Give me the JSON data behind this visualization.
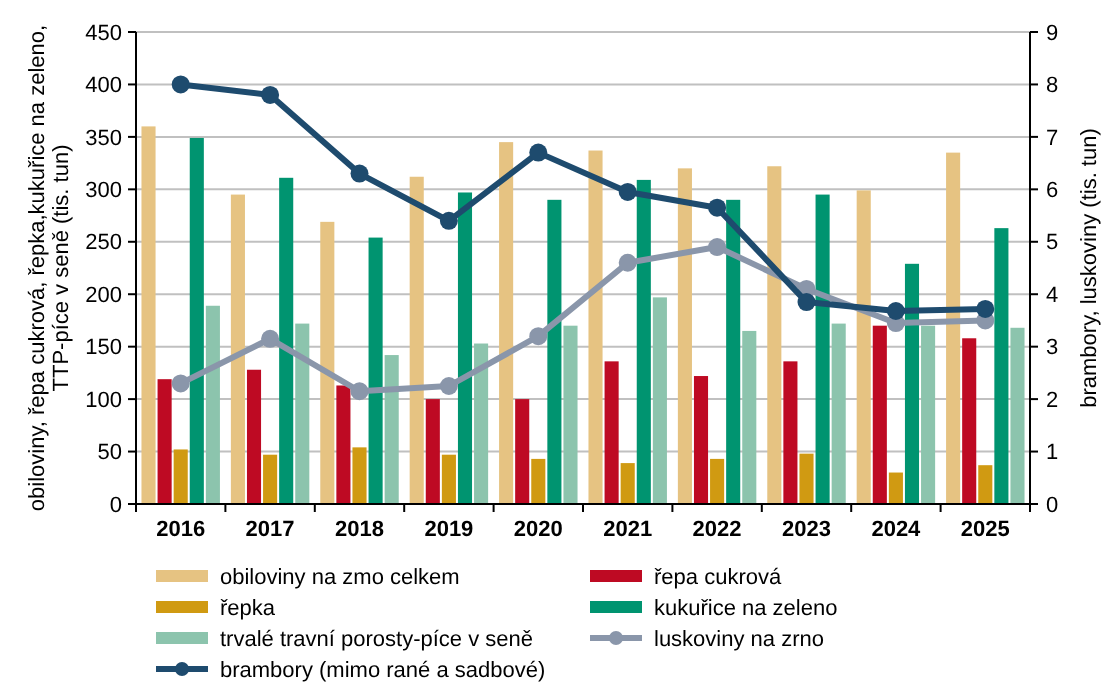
{
  "chart_data": {
    "type": "bar",
    "categories": [
      "2016",
      "2017",
      "2018",
      "2019",
      "2020",
      "2021",
      "2022",
      "2023",
      "2024",
      "2025"
    ],
    "ylabel": "obiloviny, řepa cukrová, řepka,kukuřice na zeleno,\nTTP-píce  v  seně  (tis. tun)",
    "y2label": "brambory, luskoviny (tis. tun)",
    "ylim": [
      0,
      450
    ],
    "yticks": [
      0,
      50,
      100,
      150,
      200,
      250,
      300,
      350,
      400,
      450
    ],
    "y2lim": [
      0,
      9
    ],
    "y2ticks": [
      0,
      1,
      2,
      3,
      4,
      5,
      6,
      7,
      8,
      9
    ],
    "grid": "y",
    "legend": "bottom",
    "series": [
      {
        "name": "obiloviny na zmo celkem",
        "color": "#e6c382",
        "values": [
          360,
          295,
          269,
          312,
          345,
          337,
          320,
          322,
          299,
          335
        ]
      },
      {
        "name": "řepa cukrová",
        "color": "#be0a23",
        "values": [
          119,
          128,
          113,
          100,
          100,
          136,
          122,
          136,
          170,
          158
        ]
      },
      {
        "name": "řepka",
        "color": "#d09a12",
        "values": [
          52,
          47,
          54,
          47,
          43,
          39,
          43,
          48,
          30,
          37
        ]
      },
      {
        "name": "kukuřice na zeleno",
        "color": "#009470",
        "values": [
          349,
          311,
          254,
          297,
          290,
          309,
          290,
          295,
          229,
          263
        ]
      },
      {
        "name": "trvalé travní porosty-píce v seně",
        "color": "#8cc4ad",
        "values": [
          189,
          172,
          142,
          153,
          170,
          197,
          165,
          172,
          170,
          168
        ]
      },
      {
        "name": "luskoviny na zrno",
        "type": "line",
        "axis": "y2",
        "marker": "circle",
        "color": "#8a96aa",
        "values": [
          2.3,
          3.15,
          2.15,
          2.25,
          3.2,
          4.6,
          4.9,
          4.1,
          3.45,
          3.5
        ]
      },
      {
        "name": "brambory (mimo rané a sadbové)",
        "type": "line",
        "axis": "y2",
        "marker": "circle",
        "color": "#1e4b6e",
        "values": [
          8.0,
          7.8,
          6.3,
          5.4,
          6.7,
          5.95,
          5.65,
          3.85,
          3.68,
          3.72
        ]
      }
    ]
  }
}
